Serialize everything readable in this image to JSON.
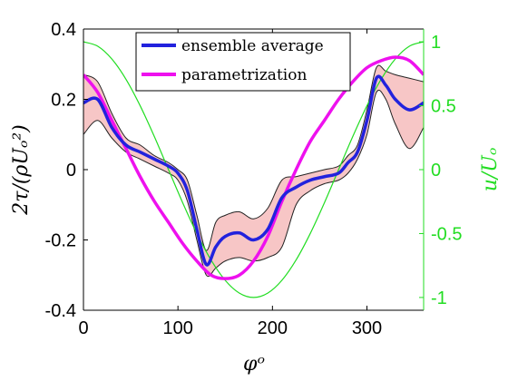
{
  "chart_data": {
    "type": "line",
    "xlabel": "φᵒ",
    "ylabel_left": "2τ/(ρUₒ²)",
    "ylabel_right": "u/Uₒ",
    "xlim": [
      0,
      360
    ],
    "ylim_left": [
      -0.4,
      0.4
    ],
    "ylim_right": [
      -1.1,
      1.1
    ],
    "xticks": [
      0,
      100,
      200,
      300
    ],
    "yticks_left": [
      0.4,
      0.2,
      0,
      -0.2,
      -0.4
    ],
    "yticks_left_labels": [
      "0.4",
      "0.2",
      "0",
      "-0.2",
      "-0.4"
    ],
    "yticks_right": [
      1,
      0.5,
      0,
      -0.5,
      -1
    ],
    "yticks_right_labels": [
      "1",
      "0.5",
      "0",
      "-0.5",
      "-1"
    ],
    "legend_position": "top-center",
    "colors": {
      "ensemble": "#2222dd",
      "parametrization": "#ee11ee",
      "band_fill": "#f7c6c6",
      "band_edge": "#222222",
      "velocity": "#22dd22",
      "right_axis": "#22dd22"
    },
    "series": [
      {
        "name": "ensemble average",
        "axis": "left",
        "x": [
          0,
          15,
          30,
          45,
          60,
          75,
          90,
          100,
          110,
          120,
          130,
          140,
          150,
          165,
          180,
          195,
          210,
          225,
          240,
          255,
          270,
          280,
          290,
          300,
          310,
          320,
          330,
          345,
          360
        ],
        "y": [
          0.19,
          0.2,
          0.12,
          0.07,
          0.05,
          0.03,
          0.01,
          -0.01,
          -0.06,
          -0.17,
          -0.27,
          -0.22,
          -0.19,
          -0.18,
          -0.2,
          -0.17,
          -0.08,
          -0.05,
          -0.03,
          -0.02,
          -0.01,
          0.02,
          0.05,
          0.14,
          0.26,
          0.24,
          0.2,
          0.17,
          0.19
        ],
        "band_upper": [
          0.27,
          0.25,
          0.16,
          0.09,
          0.07,
          0.04,
          0.02,
          0.0,
          -0.03,
          -0.13,
          -0.23,
          -0.15,
          -0.13,
          -0.12,
          -0.14,
          -0.11,
          -0.03,
          -0.02,
          -0.01,
          0.0,
          0.01,
          0.04,
          0.07,
          0.17,
          0.29,
          0.28,
          0.27,
          0.26,
          0.25
        ],
        "band_lower": [
          0.1,
          0.14,
          0.09,
          0.05,
          0.03,
          0.01,
          -0.01,
          -0.03,
          -0.09,
          -0.2,
          -0.3,
          -0.28,
          -0.26,
          -0.25,
          -0.26,
          -0.25,
          -0.22,
          -0.1,
          -0.06,
          -0.04,
          -0.03,
          -0.01,
          0.03,
          0.1,
          0.22,
          0.2,
          0.13,
          0.06,
          0.12
        ]
      },
      {
        "name": "parametrization",
        "axis": "left",
        "x": [
          0,
          15,
          30,
          45,
          60,
          75,
          90,
          105,
          120,
          135,
          150,
          165,
          180,
          195,
          210,
          225,
          240,
          255,
          270,
          285,
          300,
          315,
          330,
          345,
          360
        ],
        "y": [
          0.27,
          0.22,
          0.14,
          0.06,
          -0.02,
          -0.09,
          -0.15,
          -0.21,
          -0.26,
          -0.3,
          -0.31,
          -0.3,
          -0.26,
          -0.19,
          -0.09,
          0.0,
          0.08,
          0.14,
          0.2,
          0.25,
          0.29,
          0.31,
          0.32,
          0.31,
          0.27
        ]
      },
      {
        "axis": "right",
        "x": [
          0,
          15,
          30,
          45,
          60,
          75,
          90,
          105,
          120,
          135,
          150,
          165,
          180,
          195,
          210,
          225,
          240,
          255,
          270,
          285,
          300,
          315,
          330,
          345,
          360
        ],
        "y": [
          1.0,
          0.966,
          0.866,
          0.707,
          0.5,
          0.259,
          0.0,
          -0.259,
          -0.5,
          -0.707,
          -0.866,
          -0.966,
          -1.0,
          -0.966,
          -0.866,
          -0.707,
          -0.5,
          -0.259,
          0.0,
          0.259,
          0.5,
          0.707,
          0.866,
          0.966,
          1.0
        ]
      }
    ]
  }
}
